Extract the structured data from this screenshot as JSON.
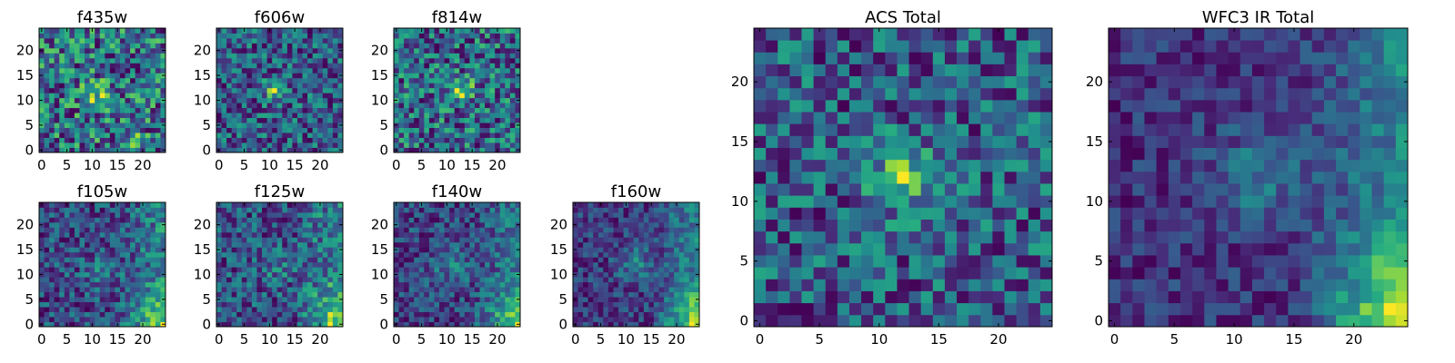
{
  "figure": {
    "colormap": "viridis",
    "colors": {
      "viridis_low": "#440154",
      "viridis_mid": "#21918c",
      "viridis_high": "#fde725",
      "frame": "#000000"
    }
  },
  "chart_data": [
    {
      "type": "heatmap",
      "title": "f435w",
      "xlim": [
        -0.5,
        24.5
      ],
      "ylim": [
        -0.5,
        24.5
      ],
      "xticks": [
        0,
        5,
        10,
        15,
        20
      ],
      "yticks": [
        0,
        5,
        10,
        15,
        20
      ],
      "grid_shape": [
        25,
        25
      ],
      "blobs": [
        {
          "x": 11,
          "y": 11,
          "sigma": 2.0,
          "amp": 0.25
        },
        {
          "x": 19,
          "y": 2,
          "sigma": 1.2,
          "amp": 0.22
        }
      ],
      "gradient": {
        "x_edge": 0.0
      },
      "noise": 0.3,
      "base": 0.55,
      "seed": 11
    },
    {
      "type": "heatmap",
      "title": "f606w",
      "xlim": [
        -0.5,
        24.5
      ],
      "ylim": [
        -0.5,
        24.5
      ],
      "xticks": [
        0,
        5,
        10,
        15,
        20
      ],
      "yticks": [
        0,
        5,
        10,
        15,
        20
      ],
      "grid_shape": [
        25,
        25
      ],
      "blobs": [
        {
          "x": 11,
          "y": 12,
          "sigma": 1.5,
          "amp": 0.38
        }
      ],
      "gradient": {
        "x_edge": 0.0
      },
      "noise": 0.26,
      "base": 0.5,
      "seed": 23
    },
    {
      "type": "heatmap",
      "title": "f814w",
      "xlim": [
        -0.5,
        24.5
      ],
      "ylim": [
        -0.5,
        24.5
      ],
      "xticks": [
        0,
        5,
        10,
        15,
        20
      ],
      "yticks": [
        0,
        5,
        10,
        15,
        20
      ],
      "grid_shape": [
        25,
        25
      ],
      "blobs": [
        {
          "x": 13,
          "y": 12,
          "sigma": 1.6,
          "amp": 0.33
        }
      ],
      "gradient": {
        "x_edge": 0.0
      },
      "noise": 0.28,
      "base": 0.52,
      "seed": 37
    },
    {
      "type": "heatmap",
      "title": "f105w",
      "xlim": [
        -0.5,
        24.5
      ],
      "ylim": [
        -0.5,
        24.5
      ],
      "xticks": [
        0,
        5,
        10,
        15,
        20
      ],
      "yticks": [
        0,
        5,
        10,
        15,
        20
      ],
      "grid_shape": [
        25,
        25
      ],
      "blobs": [
        {
          "x": 12,
          "y": 11,
          "sigma": 2.5,
          "amp": 0.12
        }
      ],
      "gradient": {
        "x_edge": 0.45
      },
      "noise": 0.18,
      "base": 0.42,
      "seed": 41
    },
    {
      "type": "heatmap",
      "title": "f125w",
      "xlim": [
        -0.5,
        24.5
      ],
      "ylim": [
        -0.5,
        24.5
      ],
      "xticks": [
        0,
        5,
        10,
        15,
        20
      ],
      "yticks": [
        0,
        5,
        10,
        15,
        20
      ],
      "grid_shape": [
        25,
        25
      ],
      "blobs": [
        {
          "x": 12,
          "y": 11,
          "sigma": 2.5,
          "amp": 0.1
        }
      ],
      "gradient": {
        "x_edge": 0.5
      },
      "noise": 0.2,
      "base": 0.42,
      "seed": 53
    },
    {
      "type": "heatmap",
      "title": "f140w",
      "xlim": [
        -0.5,
        24.5
      ],
      "ylim": [
        -0.5,
        24.5
      ],
      "xticks": [
        0,
        5,
        10,
        15,
        20
      ],
      "yticks": [
        0,
        5,
        10,
        15,
        20
      ],
      "grid_shape": [
        25,
        25
      ],
      "blobs": [
        {
          "x": 11,
          "y": 12,
          "sigma": 2.8,
          "amp": 0.16
        }
      ],
      "gradient": {
        "x_edge": 0.5
      },
      "noise": 0.17,
      "base": 0.42,
      "seed": 67
    },
    {
      "type": "heatmap",
      "title": "f160w",
      "xlim": [
        -0.5,
        24.5
      ],
      "ylim": [
        -0.5,
        24.5
      ],
      "xticks": [
        0,
        5,
        10,
        15,
        20
      ],
      "yticks": [
        0,
        5,
        10,
        15,
        20
      ],
      "grid_shape": [
        25,
        25
      ],
      "blobs": [
        {
          "x": 12,
          "y": 12,
          "sigma": 2.5,
          "amp": 0.18
        }
      ],
      "gradient": {
        "x_edge": 0.55
      },
      "noise": 0.14,
      "base": 0.38,
      "seed": 79
    },
    {
      "type": "heatmap",
      "title": "ACS Total",
      "xlim": [
        -0.5,
        24.5
      ],
      "ylim": [
        -0.5,
        24.5
      ],
      "xticks": [
        0,
        5,
        10,
        15,
        20
      ],
      "yticks": [
        0,
        5,
        10,
        15,
        20
      ],
      "grid_shape": [
        25,
        25
      ],
      "blobs": [
        {
          "x": 12,
          "y": 12,
          "sigma": 1.8,
          "amp": 0.34
        }
      ],
      "gradient": {
        "x_edge": 0.0
      },
      "noise": 0.22,
      "base": 0.58,
      "seed": 97
    },
    {
      "type": "heatmap",
      "title": "WFC3 IR Total",
      "xlim": [
        -0.5,
        24.5
      ],
      "ylim": [
        -0.5,
        24.5
      ],
      "xticks": [
        0,
        5,
        10,
        15,
        20
      ],
      "yticks": [
        0,
        5,
        10,
        15,
        20
      ],
      "grid_shape": [
        25,
        25
      ],
      "blobs": [
        {
          "x": 12,
          "y": 12,
          "sigma": 2.8,
          "amp": 0.15
        }
      ],
      "gradient": {
        "x_edge": 0.55
      },
      "noise": 0.1,
      "base": 0.36,
      "seed": 113
    }
  ]
}
